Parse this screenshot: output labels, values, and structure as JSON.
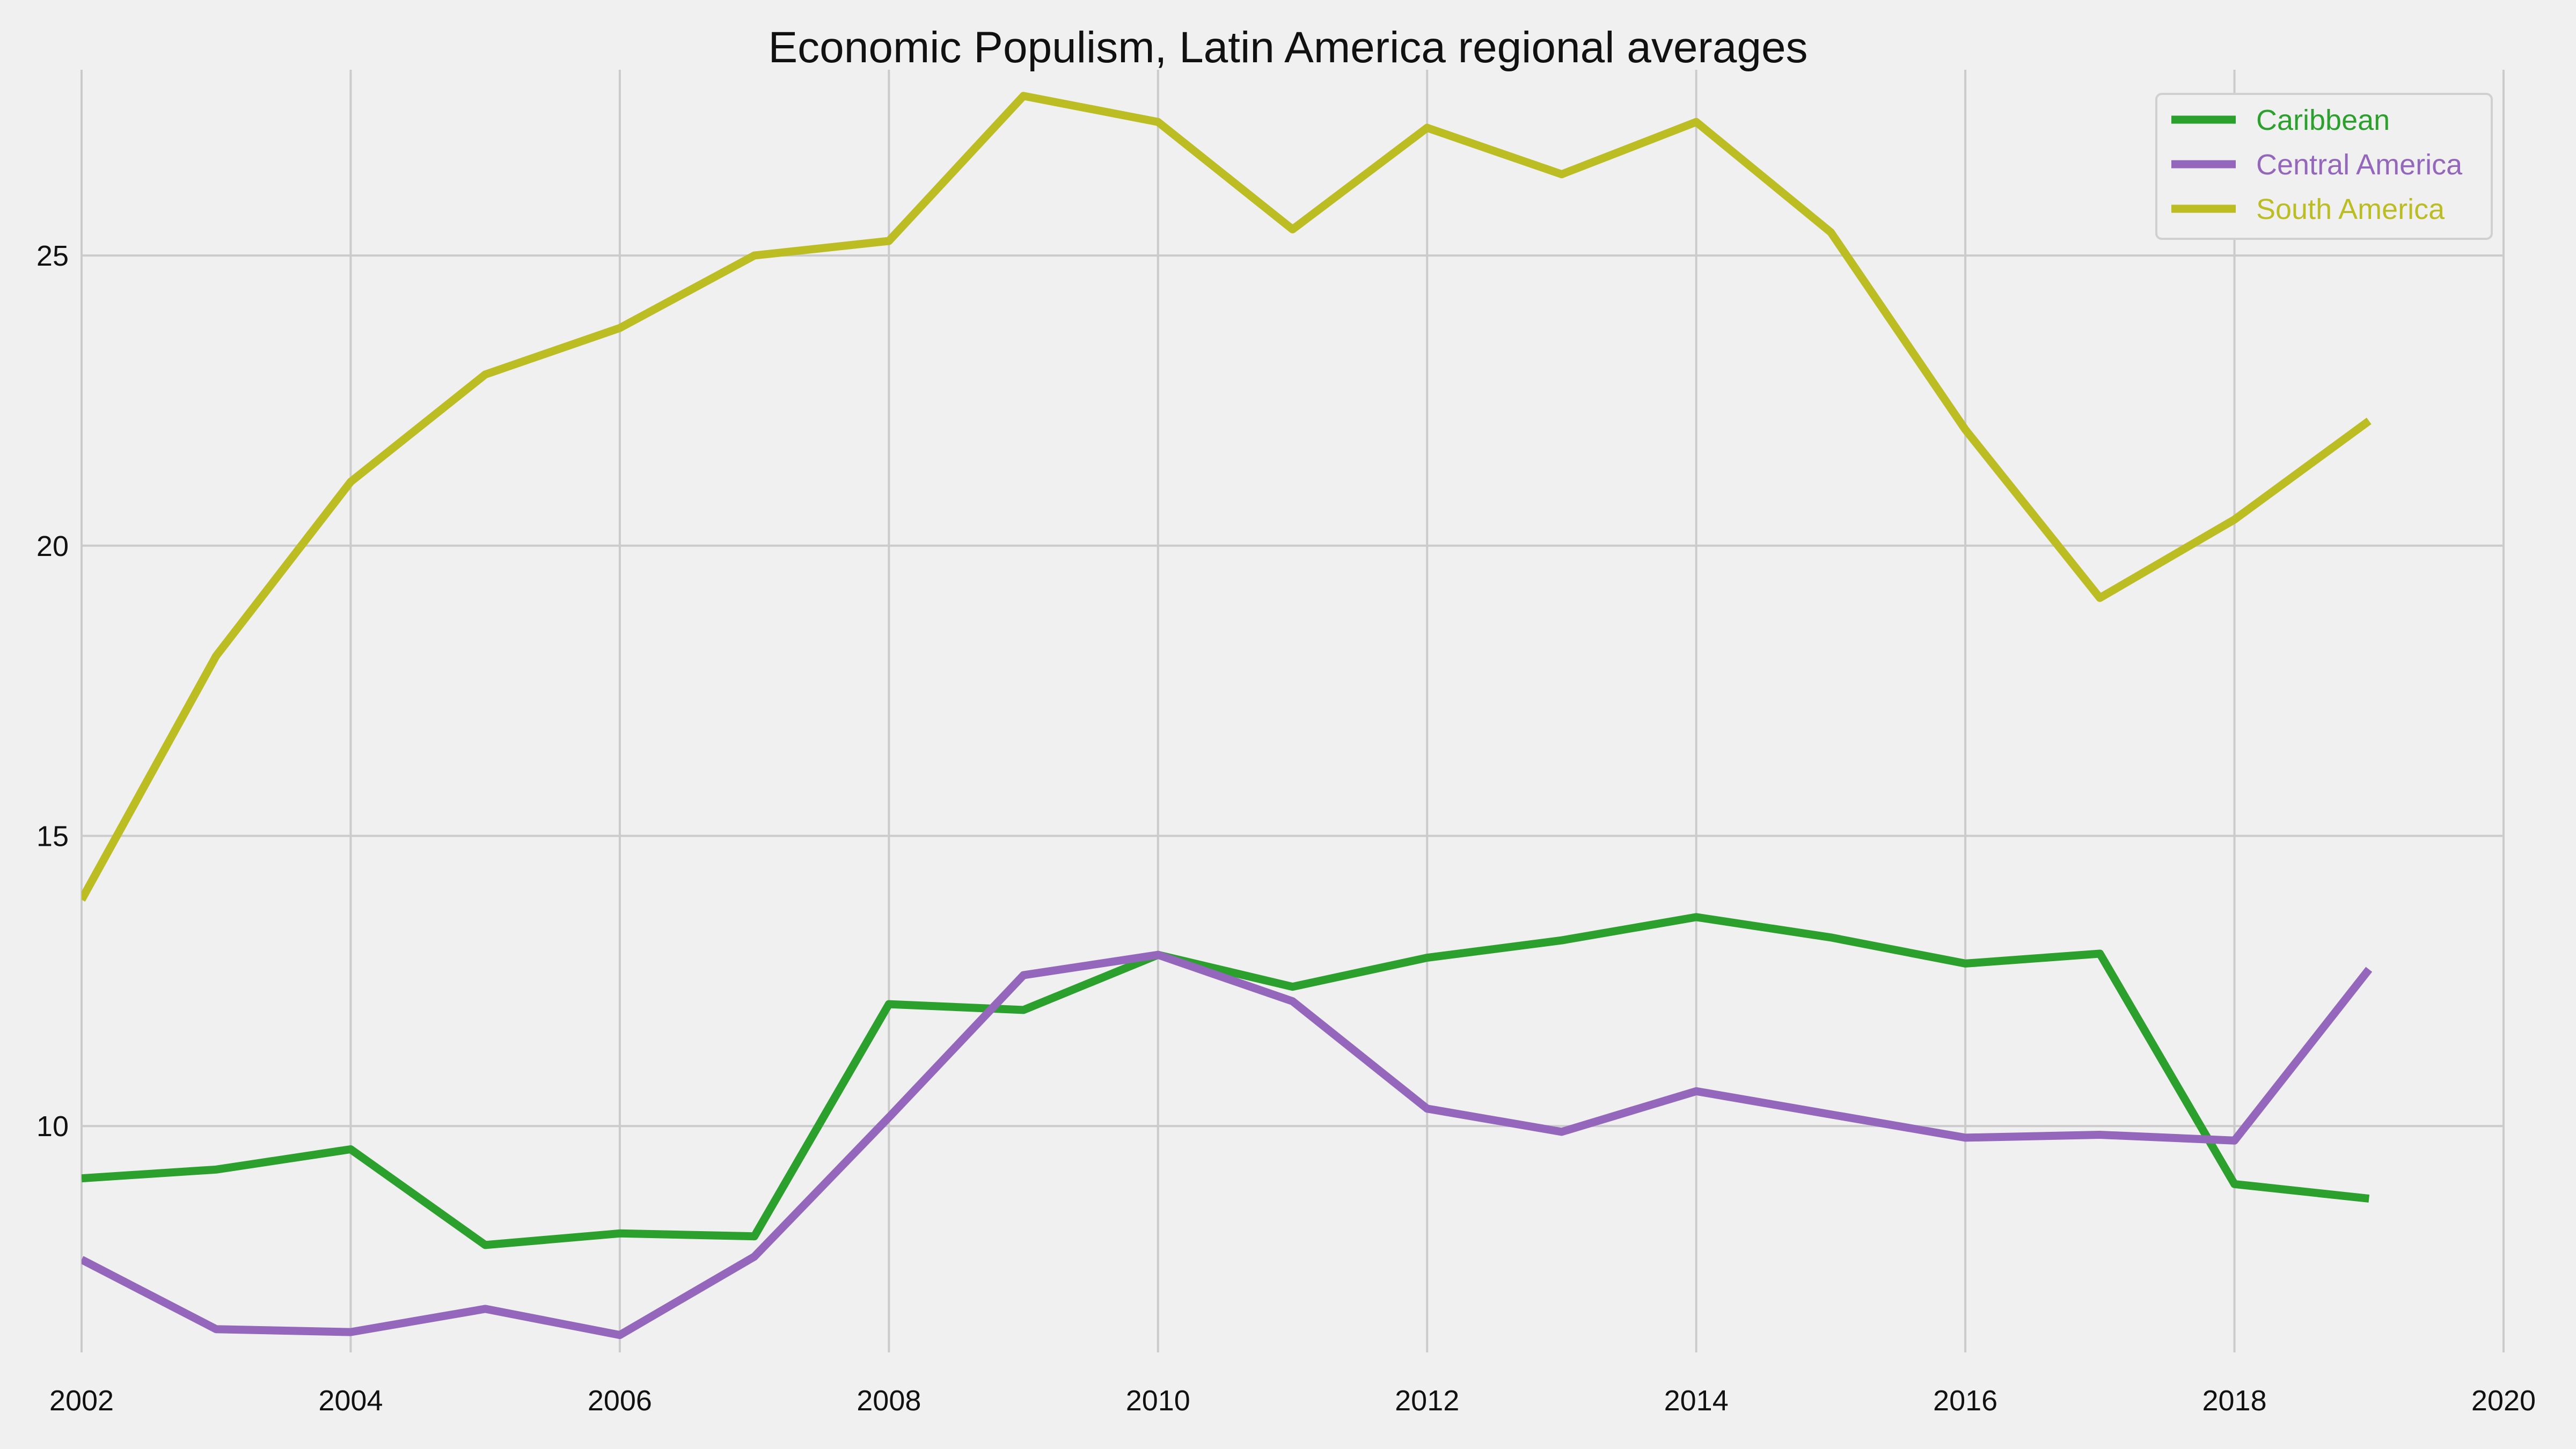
{
  "chart_data": {
    "type": "line",
    "title": "Economic Populism, Latin America regional averages",
    "xlabel": "",
    "ylabel": "",
    "x": [
      2002,
      2003,
      2004,
      2005,
      2006,
      2007,
      2008,
      2009,
      2010,
      2011,
      2012,
      2013,
      2014,
      2015,
      2016,
      2017,
      2018,
      2019
    ],
    "xlim": [
      2002,
      2020
    ],
    "ylim": [
      6.1,
      28.2
    ],
    "x_ticks": [
      "2002",
      "2004",
      "2006",
      "2008",
      "2010",
      "2012",
      "2014",
      "2016",
      "2018",
      "2020"
    ],
    "y_ticks": [
      "10",
      "15",
      "20",
      "25"
    ],
    "grid": true,
    "legend_position": "top-right",
    "series": [
      {
        "name": "Caribbean",
        "color": "#2ca02c",
        "values": [
          9.1,
          9.25,
          9.6,
          7.95,
          8.15,
          8.1,
          12.1,
          12.0,
          12.95,
          12.4,
          12.9,
          13.2,
          13.6,
          13.25,
          12.8,
          12.97,
          9.0,
          8.75
        ]
      },
      {
        "name": "Central America",
        "color": "#9467bd",
        "values": [
          7.7,
          6.5,
          6.45,
          6.85,
          6.4,
          7.75,
          10.15,
          12.6,
          12.95,
          12.15,
          10.3,
          9.9,
          10.6,
          10.2,
          9.8,
          9.85,
          9.75,
          12.7
        ]
      },
      {
        "name": "South America",
        "color": "#bcbd22",
        "values": [
          13.9,
          18.1,
          21.1,
          22.95,
          23.75,
          25.0,
          25.25,
          27.75,
          27.3,
          25.45,
          27.2,
          26.4,
          27.3,
          25.4,
          22.0,
          19.1,
          20.45,
          22.15
        ]
      }
    ]
  }
}
